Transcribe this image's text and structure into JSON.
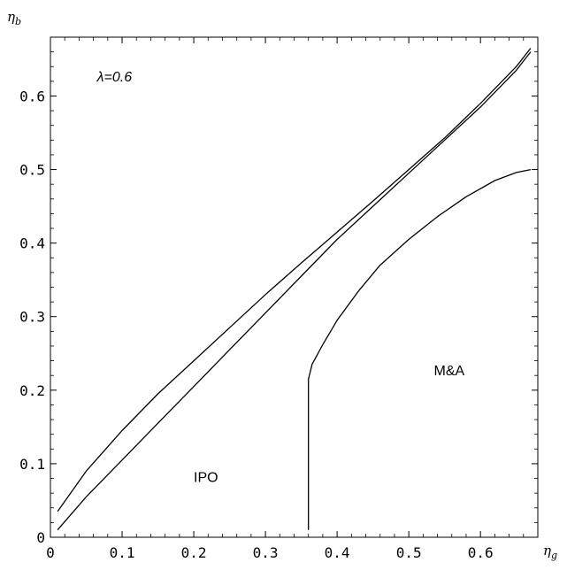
{
  "chart_data": {
    "type": "line",
    "title": "",
    "xlabel": "η",
    "xlabel_sub": "g",
    "ylabel": "η",
    "ylabel_sub": "b",
    "xlim": [
      0,
      0.68
    ],
    "ylim": [
      0,
      0.68
    ],
    "grid": false,
    "xticks": [
      0,
      0.1,
      0.2,
      0.3,
      0.4,
      0.5,
      0.6
    ],
    "xtick_labels": [
      "0",
      "0.1",
      "0.2",
      "0.3",
      "0.4",
      "0.5",
      "0.6"
    ],
    "yticks": [
      0,
      0.1,
      0.2,
      0.3,
      0.4,
      0.5,
      0.6
    ],
    "ytick_labels": [
      "0",
      "0.1",
      "0.2",
      "0.3",
      "0.4",
      "0.5",
      "0.6"
    ],
    "annotations": [
      {
        "text": "λ=0.6",
        "x": 0.065,
        "y": 0.62,
        "italic": true
      },
      {
        "text": "IPO",
        "x": 0.2,
        "y": 0.075,
        "italic": false
      },
      {
        "text": "M&A",
        "x": 0.535,
        "y": 0.22,
        "italic": false
      }
    ],
    "series": [
      {
        "x": [
          0.01,
          0.05,
          0.1,
          0.15,
          0.2,
          0.25,
          0.3,
          0.35,
          0.4,
          0.45,
          0.5,
          0.55,
          0.6,
          0.65,
          0.67
        ],
        "y": [
          0.035,
          0.09,
          0.145,
          0.195,
          0.24,
          0.285,
          0.33,
          0.373,
          0.415,
          0.457,
          0.5,
          0.543,
          0.59,
          0.64,
          0.665
        ]
      },
      {
        "x": [
          0.01,
          0.05,
          0.1,
          0.15,
          0.2,
          0.25,
          0.3,
          0.35,
          0.4,
          0.45,
          0.5,
          0.55,
          0.6,
          0.65,
          0.67
        ],
        "y": [
          0.01,
          0.055,
          0.105,
          0.155,
          0.205,
          0.255,
          0.305,
          0.355,
          0.405,
          0.45,
          0.495,
          0.54,
          0.585,
          0.635,
          0.66
        ]
      },
      {
        "x": [
          0.36,
          0.36,
          0.365,
          0.38,
          0.4,
          0.43,
          0.46,
          0.5,
          0.54,
          0.58,
          0.62,
          0.65,
          0.67
        ],
        "y": [
          0.01,
          0.215,
          0.235,
          0.262,
          0.295,
          0.335,
          0.37,
          0.405,
          0.436,
          0.463,
          0.485,
          0.496,
          0.5
        ]
      }
    ]
  }
}
